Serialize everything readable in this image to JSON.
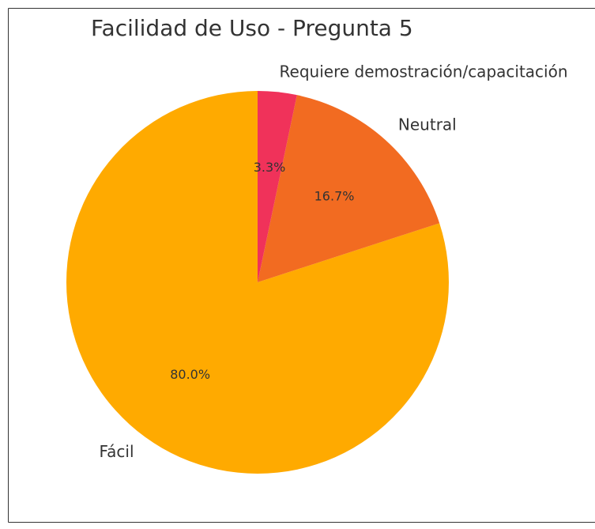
{
  "chart_data": {
    "type": "pie",
    "title": "Facilidad de Uso - Pregunta 5",
    "categories": [
      "Fácil",
      "Neutral",
      "Requiere demostración/capacitación"
    ],
    "values": [
      80.0,
      16.7,
      3.3
    ],
    "value_labels": [
      "80.0%",
      "16.7%",
      "3.3%"
    ],
    "colors": [
      "#ffaa00",
      "#f26b21",
      "#f0325a"
    ]
  }
}
